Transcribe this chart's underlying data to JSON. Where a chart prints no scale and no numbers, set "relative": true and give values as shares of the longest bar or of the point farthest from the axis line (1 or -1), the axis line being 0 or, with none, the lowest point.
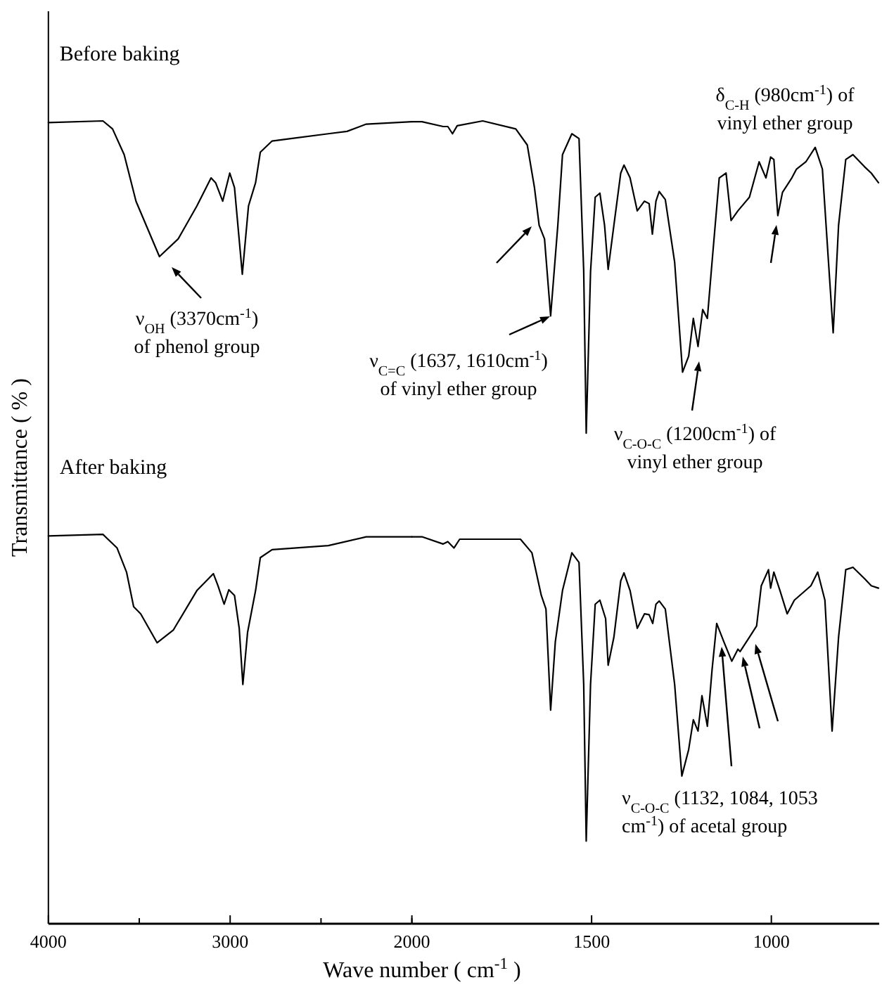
{
  "chart_data": [
    {
      "type": "line",
      "relative": true,
      "ylabel": "Transmittance ( % )",
      "xlim": [
        4000,
        2000
      ],
      "xticks": [
        4000,
        {
          "value": 3500,
          "label": null
        },
        3000,
        {
          "value": 2500,
          "label": null
        },
        2000
      ],
      "tick_labels": "x",
      "annotations": [
        "ν$_{OH}$ (3370cm$^{-1}$) of phenol group"
      ],
      "series": [
        {
          "name": "Before baking",
          "color": "#000000",
          "x": [
            4000,
            3700,
            3647,
            3583,
            3518,
            3389,
            3286,
            3183,
            3105,
            3080,
            3041,
            3002,
            2976,
            2933,
            2899,
            2860,
            2834,
            2769,
            2666,
            2460,
            2357,
            2251,
            2000
          ],
          "values": [
            0.998,
            1.0,
            0.99,
            0.958,
            0.9,
            0.831,
            0.853,
            0.894,
            0.929,
            0.923,
            0.9,
            0.935,
            0.917,
            0.809,
            0.894,
            0.923,
            0.961,
            0.975,
            0.978,
            0.984,
            0.987,
            0.996,
            0.999
          ]
        },
        {
          "name": "After baking",
          "color": "#000000",
          "x": [
            4000,
            3700,
            3622,
            3570,
            3531,
            3492,
            3402,
            3312,
            3183,
            3092,
            3067,
            3033,
            3007,
            2976,
            2950,
            2930,
            2904,
            2860,
            2834,
            2769,
            2460,
            2251,
            2000
          ],
          "values": [
            0.483,
            0.485,
            0.468,
            0.438,
            0.395,
            0.386,
            0.35,
            0.366,
            0.415,
            0.436,
            0.421,
            0.398,
            0.416,
            0.409,
            0.368,
            0.298,
            0.363,
            0.415,
            0.456,
            0.466,
            0.471,
            0.482,
            0.482
          ]
        }
      ]
    },
    {
      "type": "line",
      "relative": true,
      "xlabel": "Wave number ( cm$^{-1}$ )",
      "xlim": [
        2000,
        700
      ],
      "xticks": [
        {
          "value": 2000,
          "label": null
        },
        1500,
        1000
      ],
      "tick_labels": "x",
      "annotations": [
        "ν$_{C=C}$ (1637, 1610cm$^{-1}$) of vinyl ether group",
        "ν$_{C-O-C}$ (1200cm$^{-1}$) of vinyl ether group",
        "δ$_{C-H}$ (980cm$^{-1}$) of vinyl ether group",
        "ν$_{C-O-C}$ (1132, 1084, 1053 cm$^{-1}$) of acetal group"
      ],
      "series": [
        {
          "color": "#000000",
          "x": [
            2000,
            1972,
            1913,
            1900,
            1887,
            1874,
            1803,
            1711,
            1679,
            1659,
            1646,
            1631,
            1614,
            1594,
            1581,
            1555,
            1535,
            1522,
            1515,
            1503,
            1490,
            1477,
            1464,
            1454,
            1438,
            1419,
            1410,
            1393,
            1373,
            1353,
            1340,
            1331,
            1321,
            1312,
            1295,
            1269,
            1247,
            1230,
            1217,
            1204,
            1191,
            1178,
            1165,
            1145,
            1126,
            1112,
            1093,
            1061,
            1034,
            1015,
            1002,
            993,
            982,
            969,
            943,
            930,
            904,
            878,
            858,
            841,
            828,
            813,
            793,
            773,
            741,
            722,
            702
          ],
          "values": [
            0.999,
            0.999,
            0.993,
            0.993,
            0.984,
            0.994,
            1.0,
            0.99,
            0.97,
            0.917,
            0.87,
            0.853,
            0.757,
            0.87,
            0.958,
            0.984,
            0.978,
            0.813,
            0.611,
            0.812,
            0.905,
            0.91,
            0.87,
            0.815,
            0.87,
            0.935,
            0.945,
            0.929,
            0.888,
            0.9,
            0.897,
            0.859,
            0.9,
            0.912,
            0.902,
            0.824,
            0.687,
            0.707,
            0.754,
            0.719,
            0.765,
            0.754,
            0.824,
            0.929,
            0.935,
            0.876,
            0.888,
            0.905,
            0.949,
            0.929,
            0.955,
            0.952,
            0.882,
            0.911,
            0.929,
            0.94,
            0.949,
            0.967,
            0.94,
            0.824,
            0.736,
            0.87,
            0.952,
            0.958,
            0.943,
            0.935,
            0.923
          ]
        },
        {
          "color": "#000000",
          "x": [
            2000,
            1972,
            1913,
            1900,
            1883,
            1867,
            1698,
            1666,
            1640,
            1627,
            1614,
            1601,
            1581,
            1555,
            1535,
            1522,
            1515,
            1503,
            1490,
            1477,
            1461,
            1454,
            1438,
            1419,
            1410,
            1393,
            1373,
            1353,
            1340,
            1330,
            1321,
            1312,
            1295,
            1269,
            1249,
            1230,
            1217,
            1204,
            1193,
            1178,
            1165,
            1152,
            1132,
            1110,
            1093,
            1087,
            1061,
            1041,
            1028,
            1008,
            1002,
            993,
            976,
            956,
            936,
            890,
            871,
            851,
            831,
            813,
            793,
            773,
            741,
            722,
            702
          ],
          "values": [
            0.482,
            0.482,
            0.473,
            0.476,
            0.468,
            0.479,
            0.479,
            0.462,
            0.409,
            0.392,
            0.266,
            0.351,
            0.415,
            0.462,
            0.45,
            0.298,
            0.103,
            0.298,
            0.398,
            0.403,
            0.38,
            0.322,
            0.357,
            0.427,
            0.437,
            0.415,
            0.368,
            0.386,
            0.385,
            0.374,
            0.398,
            0.402,
            0.392,
            0.298,
            0.184,
            0.217,
            0.254,
            0.24,
            0.284,
            0.246,
            0.316,
            0.374,
            0.351,
            0.327,
            0.342,
            0.339,
            0.357,
            0.371,
            0.421,
            0.441,
            0.418,
            0.438,
            0.415,
            0.386,
            0.403,
            0.421,
            0.438,
            0.403,
            0.24,
            0.357,
            0.441,
            0.444,
            0.43,
            0.421,
            0.418
          ]
        }
      ]
    }
  ]
}
